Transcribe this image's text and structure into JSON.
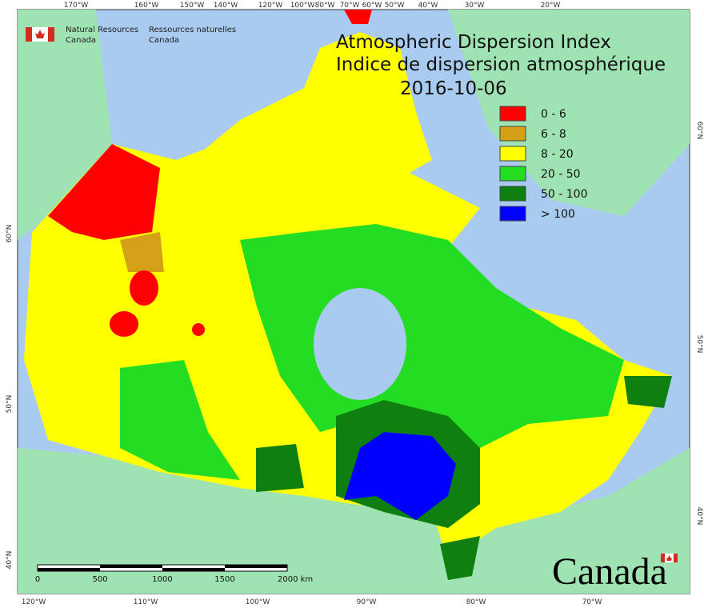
{
  "header": {
    "org_en": [
      "Natural Resources",
      "Canada"
    ],
    "org_fr": [
      "Ressources naturelles",
      "Canada"
    ]
  },
  "title": {
    "line1": "Atmospheric Dispersion Index",
    "line2": "Indice de dispersion atmosphérique",
    "date": "2016-10-06"
  },
  "legend": [
    {
      "label": "0 - 6",
      "color": "#ff0000"
    },
    {
      "label": "6 - 8",
      "color": "#d4a017"
    },
    {
      "label": "8 - 20",
      "color": "#ffff00"
    },
    {
      "label": "20 - 50",
      "color": "#22dd22"
    },
    {
      "label": "50 - 100",
      "color": "#0f7f0f"
    },
    {
      "label": "> 100",
      "color": "#0000ff"
    }
  ],
  "graticule": {
    "top": [
      "170°W",
      "160°W",
      "150°W",
      "140°W",
      "120°W",
      "100°W",
      "80°W",
      "70°W",
      "60°W",
      "50°W",
      "40°W",
      "30°W",
      "20°W"
    ],
    "bottom": [
      "120°W",
      "110°W",
      "100°W",
      "90°W",
      "80°W",
      "70°W"
    ],
    "left": [
      "60°N",
      "50°N",
      "40°N"
    ],
    "right": [
      "60°N",
      "50°N",
      "40°N"
    ]
  },
  "scale_bar": {
    "labels": [
      "0",
      "500",
      "1000",
      "1500",
      "2000 km"
    ]
  },
  "wordmark": "Canada"
}
